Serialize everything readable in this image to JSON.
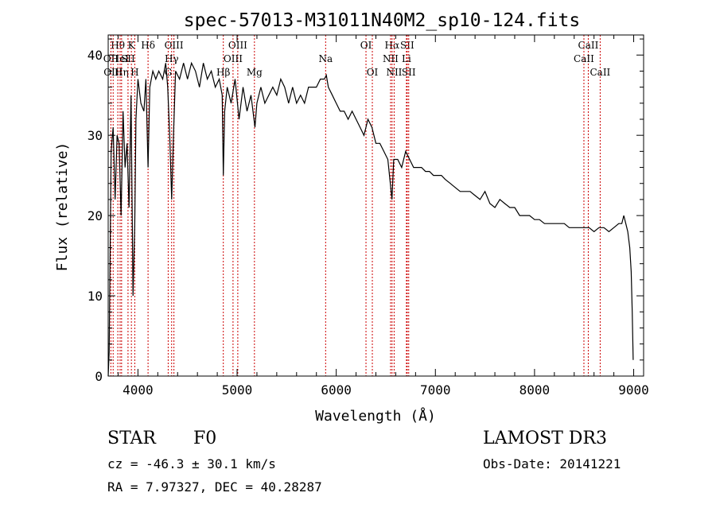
{
  "chart_data": {
    "type": "line",
    "title": "spec-57013-M31011N40M2_sp10-124.fits",
    "xlabel": "Wavelength (Å)",
    "ylabel": "Flux (relative)",
    "xlim": [
      3700,
      9100
    ],
    "ylim": [
      0,
      42.5
    ],
    "x_ticks": [
      4000,
      5000,
      6000,
      7000,
      8000,
      9000
    ],
    "y_ticks": [
      0,
      10,
      20,
      30,
      40
    ],
    "grid": false,
    "series": [
      {
        "name": "spectrum",
        "x": [
          3700,
          3710,
          3730,
          3750,
          3770,
          3790,
          3810,
          3830,
          3850,
          3870,
          3890,
          3910,
          3930,
          3950,
          3968,
          3980,
          4000,
          4030,
          4060,
          4080,
          4102,
          4120,
          4150,
          4180,
          4210,
          4250,
          4280,
          4300,
          4320,
          4340,
          4361,
          4380,
          4420,
          4460,
          4500,
          4540,
          4580,
          4620,
          4660,
          4700,
          4740,
          4780,
          4820,
          4850,
          4861,
          4875,
          4900,
          4940,
          4980,
          5020,
          5060,
          5100,
          5140,
          5180,
          5200,
          5240,
          5280,
          5320,
          5360,
          5400,
          5440,
          5480,
          5520,
          5560,
          5600,
          5640,
          5680,
          5720,
          5760,
          5800,
          5840,
          5880,
          5900,
          5920,
          5960,
          6000,
          6040,
          6080,
          6120,
          6160,
          6200,
          6240,
          6280,
          6300,
          6320,
          6360,
          6400,
          6440,
          6480,
          6520,
          6562,
          6580,
          6620,
          6660,
          6700,
          6740,
          6780,
          6820,
          6860,
          6900,
          6940,
          6980,
          7020,
          7060,
          7100,
          7150,
          7200,
          7250,
          7300,
          7350,
          7400,
          7450,
          7500,
          7550,
          7600,
          7650,
          7700,
          7750,
          7800,
          7850,
          7900,
          7950,
          8000,
          8050,
          8100,
          8150,
          8200,
          8250,
          8300,
          8350,
          8400,
          8450,
          8500,
          8550,
          8600,
          8650,
          8700,
          8750,
          8800,
          8850,
          8880,
          8900,
          8920,
          8940,
          8960,
          8975,
          8985,
          8995
        ],
        "y": [
          0,
          3,
          28,
          31,
          22,
          30,
          29,
          20,
          33,
          26,
          29,
          21,
          35,
          10,
          19,
          32,
          37,
          34,
          33,
          37,
          26,
          36,
          38,
          37,
          38,
          37,
          39,
          36,
          30,
          22,
          31,
          38,
          37,
          39,
          37,
          39,
          38,
          36,
          39,
          37,
          38,
          36,
          37,
          35,
          25,
          33,
          36,
          34,
          37,
          32,
          36,
          33,
          35,
          31,
          34,
          36,
          34,
          35,
          36,
          35,
          37,
          36,
          34,
          36,
          34,
          35,
          34,
          36,
          36,
          36,
          37,
          37,
          37.5,
          36,
          35,
          34,
          33,
          33,
          32,
          33,
          32,
          31,
          30,
          31,
          32,
          31,
          29,
          29,
          28,
          27,
          22,
          27,
          27,
          26,
          28,
          27,
          26,
          26,
          26,
          25.5,
          25.5,
          25,
          25,
          25,
          24.5,
          24,
          23.5,
          23,
          23,
          23,
          22.5,
          22,
          23,
          21.5,
          21,
          22,
          21.5,
          21,
          21,
          20,
          20,
          20,
          19.5,
          19.5,
          19,
          19,
          19,
          19,
          19,
          18.5,
          18.5,
          18.5,
          18.5,
          18.5,
          18,
          18.5,
          18.5,
          18,
          18.5,
          19,
          19,
          20,
          19,
          18,
          16,
          13,
          8,
          2
        ]
      }
    ],
    "line_markers": [
      {
        "label": "Hθ",
        "x": 3797,
        "row": 0
      },
      {
        "label": "OII",
        "x": 3727,
        "row": 1
      },
      {
        "label": "HeI",
        "x": 3820,
        "row": 1
      },
      {
        "label": "Hη",
        "x": 3835,
        "row": 2
      },
      {
        "label": "OIII",
        "x": 3750,
        "row": 2
      },
      {
        "label": "K",
        "x": 3934,
        "row": 0
      },
      {
        "label": "SII",
        "x": 3900,
        "row": 1
      },
      {
        "label": "H",
        "x": 3968,
        "row": 2
      },
      {
        "label": "Hδ",
        "x": 4102,
        "row": 0
      },
      {
        "label": "OIII",
        "x": 4363,
        "row": 0
      },
      {
        "label": "Hγ",
        "x": 4340,
        "row": 1
      },
      {
        "label": "G",
        "x": 4305,
        "row": 2
      },
      {
        "label": "OIII",
        "x": 5007,
        "row": 0
      },
      {
        "label": "OIII",
        "x": 4959,
        "row": 1
      },
      {
        "label": "Hβ",
        "x": 4861,
        "row": 2
      },
      {
        "label": "Mg",
        "x": 5175,
        "row": 2
      },
      {
        "label": "Na",
        "x": 5893,
        "row": 1
      },
      {
        "label": "OI",
        "x": 6300,
        "row": 0
      },
      {
        "label": "OI",
        "x": 6364,
        "row": 2
      },
      {
        "label": "Hα",
        "x": 6563,
        "row": 0
      },
      {
        "label": "SII",
        "x": 6716,
        "row": 0
      },
      {
        "label": "NII",
        "x": 6548,
        "row": 1
      },
      {
        "label": "Li",
        "x": 6708,
        "row": 1
      },
      {
        "label": "NII",
        "x": 6584,
        "row": 2
      },
      {
        "label": "SII",
        "x": 6731,
        "row": 2
      },
      {
        "label": "CaII",
        "x": 8542,
        "row": 0
      },
      {
        "label": "CaII",
        "x": 8498,
        "row": 1
      },
      {
        "label": "CaII",
        "x": 8662,
        "row": 2
      }
    ]
  },
  "info": {
    "object_class": "STAR",
    "subclass": "F0",
    "survey": "LAMOST DR3",
    "cz": "cz = -46.3 ± 30.1 km/s",
    "obs_date": "Obs-Date: 20141221",
    "coords": "RA =   7.97327, DEC =  40.28287"
  },
  "colors": {
    "spectrum": "#000000",
    "marker_line": "#cc0000"
  }
}
